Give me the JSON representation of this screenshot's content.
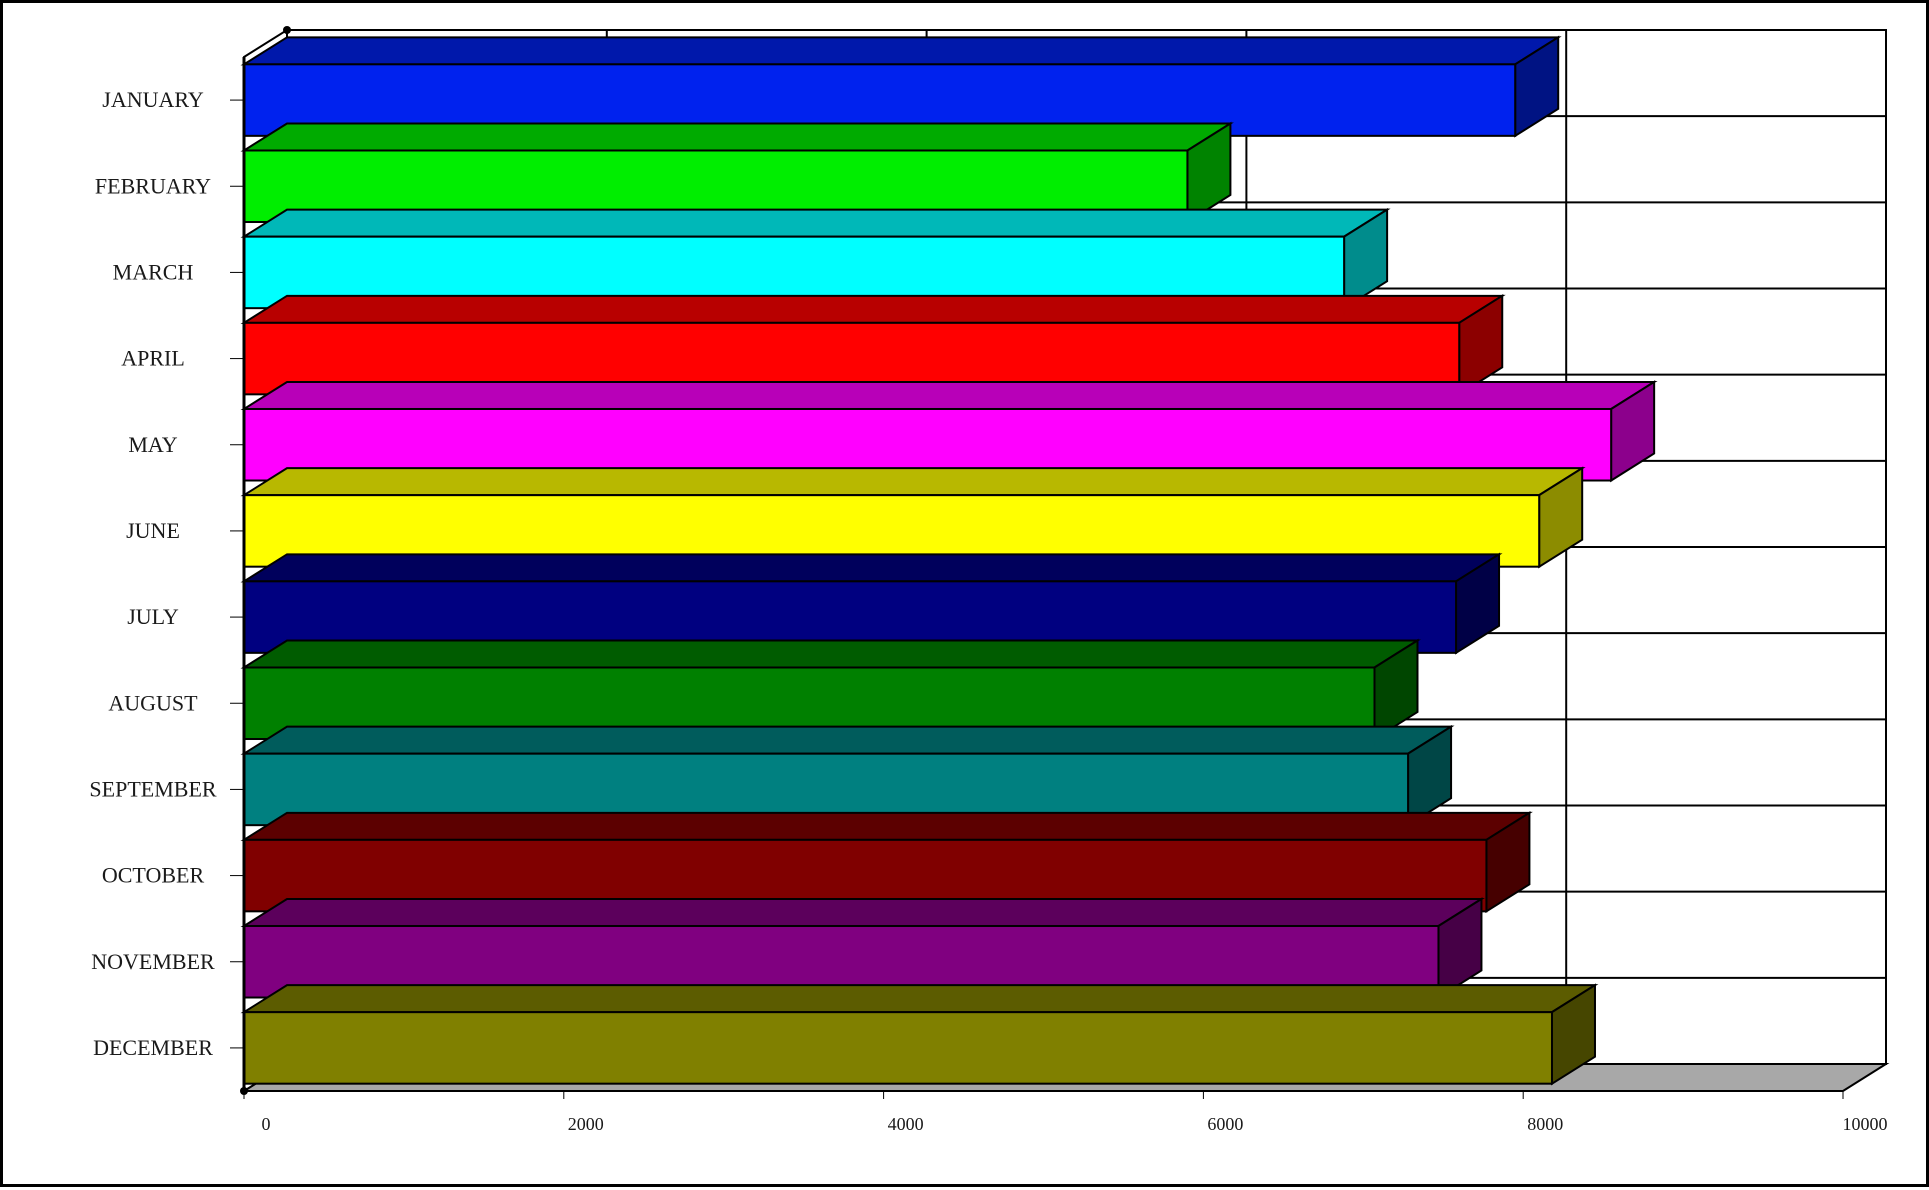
{
  "chart_data": {
    "type": "bar",
    "orientation": "horizontal",
    "style": "3d",
    "categories": [
      "JANUARY",
      "FEBRUARY",
      "MARCH",
      "APRIL",
      "MAY",
      "JUNE",
      "JULY",
      "AUGUST",
      "SEPTEMBER",
      "OCTOBER",
      "NOVEMBER",
      "DECEMBER"
    ],
    "values": [
      7950,
      5900,
      6880,
      7600,
      8550,
      8100,
      7580,
      7070,
      7280,
      7770,
      7470,
      8180
    ],
    "colors": [
      "#0022ee",
      "#00ee00",
      "#00ffff",
      "#ff0000",
      "#ff00ff",
      "#ffff00",
      "#000080",
      "#008000",
      "#008080",
      "#800000",
      "#800080",
      "#808000"
    ],
    "xlim": [
      0,
      10000
    ],
    "x_ticks": [
      "0",
      "2000",
      "4000",
      "6000",
      "8000",
      "10000"
    ],
    "grid": true,
    "legend": "none",
    "title": "",
    "xlabel": "",
    "ylabel": ""
  }
}
